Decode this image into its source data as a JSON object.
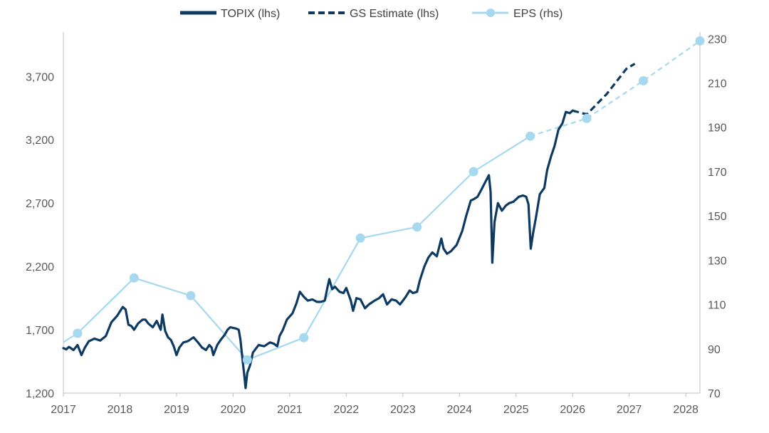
{
  "chart_data": {
    "type": "line",
    "title": "",
    "legend": {
      "placement": "top",
      "items": [
        {
          "label": "TOPIX (lhs)",
          "color": "#0d3a63",
          "style": "solid"
        },
        {
          "label": "GS Estimate (lhs)",
          "color": "#0d3a63",
          "style": "dashed"
        },
        {
          "label": "EPS (rhs)",
          "color": "#a6d8f0",
          "style": "line-marker"
        }
      ]
    },
    "x_axis": {
      "range": [
        2017,
        2028.25
      ],
      "ticks": [
        "2017",
        "2018",
        "2019",
        "2020",
        "2021",
        "2022",
        "2023",
        "2024",
        "2025",
        "2026",
        "2027",
        "2028"
      ]
    },
    "y_left": {
      "range": [
        1200,
        4050
      ],
      "ticks": [
        "1,200",
        "1,700",
        "2,200",
        "2,700",
        "3,200",
        "3,700"
      ],
      "tick_values": [
        1200,
        1700,
        2200,
        2700,
        3200,
        3700
      ]
    },
    "y_right": {
      "range": [
        70,
        233
      ],
      "ticks": [
        "70",
        "90",
        "110",
        "130",
        "150",
        "170",
        "190",
        "210",
        "230"
      ],
      "tick_values": [
        70,
        90,
        110,
        130,
        150,
        170,
        190,
        210,
        230
      ]
    },
    "grid": false,
    "series": [
      {
        "name": "TOPIX (lhs)",
        "axis": "left",
        "color": "#0d3a63",
        "style": "solid",
        "points": [
          [
            2017.0,
            1555
          ],
          [
            2017.05,
            1545
          ],
          [
            2017.1,
            1565
          ],
          [
            2017.18,
            1540
          ],
          [
            2017.25,
            1580
          ],
          [
            2017.32,
            1500
          ],
          [
            2017.38,
            1560
          ],
          [
            2017.45,
            1610
          ],
          [
            2017.55,
            1630
          ],
          [
            2017.65,
            1615
          ],
          [
            2017.75,
            1650
          ],
          [
            2017.85,
            1760
          ],
          [
            2017.95,
            1810
          ],
          [
            2018.05,
            1880
          ],
          [
            2018.1,
            1860
          ],
          [
            2018.15,
            1740
          ],
          [
            2018.2,
            1730
          ],
          [
            2018.25,
            1700
          ],
          [
            2018.32,
            1750
          ],
          [
            2018.4,
            1780
          ],
          [
            2018.45,
            1780
          ],
          [
            2018.5,
            1750
          ],
          [
            2018.58,
            1720
          ],
          [
            2018.65,
            1770
          ],
          [
            2018.72,
            1700
          ],
          [
            2018.75,
            1820
          ],
          [
            2018.8,
            1690
          ],
          [
            2018.85,
            1640
          ],
          [
            2018.9,
            1620
          ],
          [
            2018.95,
            1570
          ],
          [
            2019.0,
            1500
          ],
          [
            2019.05,
            1560
          ],
          [
            2019.12,
            1600
          ],
          [
            2019.2,
            1610
          ],
          [
            2019.3,
            1640
          ],
          [
            2019.38,
            1600
          ],
          [
            2019.45,
            1560
          ],
          [
            2019.52,
            1540
          ],
          [
            2019.58,
            1580
          ],
          [
            2019.62,
            1560
          ],
          [
            2019.65,
            1500
          ],
          [
            2019.72,
            1580
          ],
          [
            2019.78,
            1620
          ],
          [
            2019.85,
            1660
          ],
          [
            2019.9,
            1700
          ],
          [
            2019.95,
            1720
          ],
          [
            2020.05,
            1710
          ],
          [
            2020.1,
            1700
          ],
          [
            2020.13,
            1620
          ],
          [
            2020.17,
            1450
          ],
          [
            2020.2,
            1330
          ],
          [
            2020.22,
            1240
          ],
          [
            2020.25,
            1360
          ],
          [
            2020.3,
            1420
          ],
          [
            2020.35,
            1520
          ],
          [
            2020.45,
            1580
          ],
          [
            2020.55,
            1570
          ],
          [
            2020.65,
            1600
          ],
          [
            2020.72,
            1590
          ],
          [
            2020.78,
            1570
          ],
          [
            2020.82,
            1650
          ],
          [
            2020.88,
            1700
          ],
          [
            2020.95,
            1780
          ],
          [
            2021.05,
            1830
          ],
          [
            2021.12,
            1910
          ],
          [
            2021.18,
            2000
          ],
          [
            2021.25,
            1960
          ],
          [
            2021.32,
            1930
          ],
          [
            2021.4,
            1940
          ],
          [
            2021.48,
            1920
          ],
          [
            2021.55,
            1920
          ],
          [
            2021.62,
            1930
          ],
          [
            2021.67,
            2040
          ],
          [
            2021.7,
            2100
          ],
          [
            2021.75,
            2020
          ],
          [
            2021.8,
            2040
          ],
          [
            2021.88,
            2000
          ],
          [
            2021.95,
            1990
          ],
          [
            2022.0,
            2030
          ],
          [
            2022.08,
            1930
          ],
          [
            2022.12,
            1850
          ],
          [
            2022.18,
            1950
          ],
          [
            2022.25,
            1940
          ],
          [
            2022.33,
            1870
          ],
          [
            2022.4,
            1900
          ],
          [
            2022.5,
            1930
          ],
          [
            2022.58,
            1950
          ],
          [
            2022.65,
            1980
          ],
          [
            2022.72,
            1900
          ],
          [
            2022.8,
            1940
          ],
          [
            2022.88,
            1930
          ],
          [
            2022.95,
            1900
          ],
          [
            2023.05,
            1960
          ],
          [
            2023.12,
            2010
          ],
          [
            2023.18,
            1990
          ],
          [
            2023.25,
            2000
          ],
          [
            2023.3,
            2090
          ],
          [
            2023.38,
            2200
          ],
          [
            2023.45,
            2270
          ],
          [
            2023.52,
            2310
          ],
          [
            2023.6,
            2280
          ],
          [
            2023.68,
            2420
          ],
          [
            2023.72,
            2340
          ],
          [
            2023.78,
            2300
          ],
          [
            2023.85,
            2320
          ],
          [
            2023.95,
            2370
          ],
          [
            2024.05,
            2480
          ],
          [
            2024.12,
            2600
          ],
          [
            2024.2,
            2720
          ],
          [
            2024.25,
            2730
          ],
          [
            2024.32,
            2750
          ],
          [
            2024.38,
            2800
          ],
          [
            2024.45,
            2860
          ],
          [
            2024.52,
            2920
          ],
          [
            2024.55,
            2790
          ],
          [
            2024.58,
            2230
          ],
          [
            2024.62,
            2550
          ],
          [
            2024.68,
            2700
          ],
          [
            2024.75,
            2640
          ],
          [
            2024.82,
            2680
          ],
          [
            2024.88,
            2700
          ],
          [
            2024.95,
            2710
          ],
          [
            2025.05,
            2750
          ],
          [
            2025.12,
            2760
          ],
          [
            2025.18,
            2750
          ],
          [
            2025.22,
            2690
          ],
          [
            2025.26,
            2340
          ],
          [
            2025.3,
            2460
          ],
          [
            2025.35,
            2580
          ],
          [
            2025.42,
            2770
          ],
          [
            2025.5,
            2820
          ],
          [
            2025.55,
            2960
          ],
          [
            2025.62,
            3070
          ],
          [
            2025.68,
            3150
          ],
          [
            2025.75,
            3280
          ],
          [
            2025.82,
            3330
          ],
          [
            2025.88,
            3420
          ],
          [
            2025.95,
            3410
          ],
          [
            2026.0,
            3430
          ]
        ]
      },
      {
        "name": "GS Estimate (lhs)",
        "axis": "left",
        "color": "#0d3a63",
        "style": "dashed",
        "points": [
          [
            2026.0,
            3430
          ],
          [
            2026.25,
            3400
          ],
          [
            2026.6,
            3560
          ],
          [
            2026.95,
            3760
          ],
          [
            2027.1,
            3800
          ]
        ]
      },
      {
        "name": "EPS (rhs)",
        "axis": "right",
        "color": "#a6d8f0",
        "style": "line-marker",
        "points": [
          [
            2017.0,
            93
          ],
          [
            2017.25,
            97
          ],
          [
            2018.25,
            122
          ],
          [
            2019.25,
            114
          ],
          [
            2020.25,
            85
          ],
          [
            2021.25,
            95
          ],
          [
            2022.25,
            140
          ],
          [
            2023.25,
            145
          ],
          [
            2024.25,
            170
          ],
          [
            2025.25,
            186
          ]
        ],
        "projection": [
          [
            2025.25,
            186
          ],
          [
            2026.25,
            194
          ],
          [
            2027.25,
            211
          ],
          [
            2028.25,
            229
          ]
        ],
        "markers": [
          [
            2017.25,
            97
          ],
          [
            2018.25,
            122
          ],
          [
            2019.25,
            114
          ],
          [
            2020.25,
            85
          ],
          [
            2021.25,
            95
          ],
          [
            2022.25,
            140
          ],
          [
            2023.25,
            145
          ],
          [
            2024.25,
            170
          ],
          [
            2025.25,
            186
          ],
          [
            2026.25,
            194
          ],
          [
            2027.25,
            211
          ],
          [
            2028.25,
            229
          ]
        ]
      }
    ]
  }
}
